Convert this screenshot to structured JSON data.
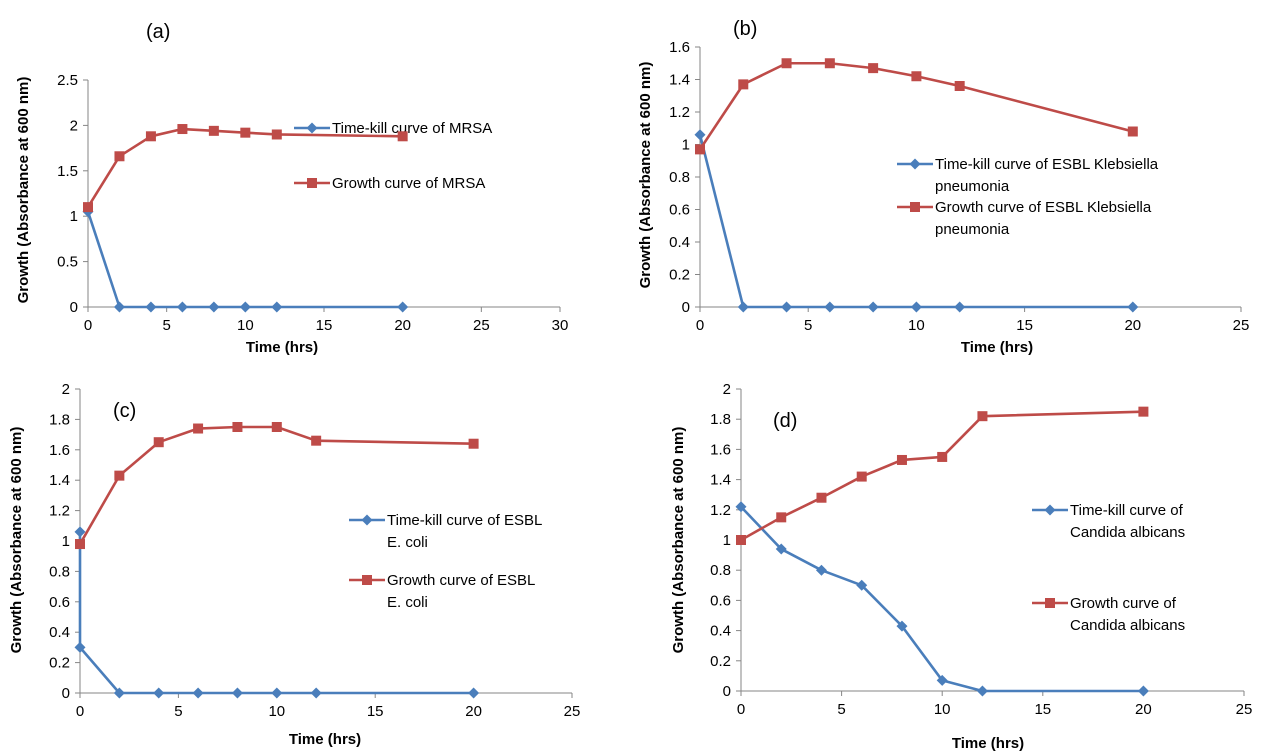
{
  "chart_data": [
    {
      "type": "line",
      "panel_label": "(a)",
      "xlabel": "Time (hrs)",
      "ylabel": "Growth (Absorbance at 600 nm)",
      "xlim": [
        0,
        30
      ],
      "ylim": [
        0,
        2.5
      ],
      "xticks": [
        "0",
        "5",
        "10",
        "15",
        "20",
        "25",
        "30"
      ],
      "yticks": [
        "0",
        "0.5",
        "1",
        "1.5",
        "2",
        "2.5"
      ],
      "legend_position": "right",
      "series": [
        {
          "name": "Time-kill curve of MRSA",
          "color": "#4a7ebb",
          "marker": "diamond",
          "x": [
            0,
            2,
            4,
            6,
            8,
            10,
            12,
            20
          ],
          "y": [
            1.05,
            0,
            0,
            0,
            0,
            0,
            0,
            0
          ]
        },
        {
          "name": "Growth curve of MRSA",
          "color": "#be4b48",
          "marker": "square",
          "x": [
            0,
            2,
            4,
            6,
            8,
            10,
            12,
            20
          ],
          "y": [
            1.1,
            1.66,
            1.88,
            1.96,
            1.94,
            1.92,
            1.9,
            1.88
          ]
        }
      ]
    },
    {
      "type": "line",
      "panel_label": "(b)",
      "xlabel": "Time (hrs)",
      "ylabel": "Growth (Absorbance at 600 nm)",
      "xlim": [
        0,
        25
      ],
      "ylim": [
        0,
        1.6
      ],
      "xticks": [
        "0",
        "5",
        "10",
        "15",
        "20",
        "25"
      ],
      "yticks": [
        "0",
        "0.2",
        "0.4",
        "0.6",
        "0.8",
        "1",
        "1.2",
        "1.4",
        "1.6"
      ],
      "legend_position": "right",
      "series": [
        {
          "name": "Time-kill curve of ESBL Klebsiella pneumonia",
          "color": "#4a7ebb",
          "marker": "diamond",
          "x": [
            0,
            2,
            4,
            6,
            8,
            10,
            12,
            20
          ],
          "y": [
            1.06,
            0,
            0,
            0,
            0,
            0,
            0,
            0
          ]
        },
        {
          "name": "Growth curve of ESBL Klebsiella pneumonia",
          "color": "#be4b48",
          "marker": "square",
          "x": [
            0,
            2,
            4,
            6,
            8,
            10,
            12,
            20
          ],
          "y": [
            0.97,
            1.37,
            1.5,
            1.5,
            1.47,
            1.42,
            1.36,
            1.08
          ]
        }
      ]
    },
    {
      "type": "line",
      "panel_label": "(c)",
      "xlabel": "Time (hrs)",
      "ylabel": "Growth (Absorbance at 600 nm)",
      "xlim": [
        0,
        25
      ],
      "ylim": [
        0,
        2
      ],
      "xticks": [
        "0",
        "5",
        "10",
        "15",
        "20",
        "25"
      ],
      "yticks": [
        "0",
        "0.2",
        "0.4",
        "0.6",
        "0.8",
        "1",
        "1.2",
        "1.4",
        "1.6",
        "1.8",
        "2"
      ],
      "legend_position": "right",
      "series": [
        {
          "name": "Time-kill curve of ESBL E. coli",
          "color": "#4a7ebb",
          "marker": "diamond",
          "x": [
            0,
            0,
            2,
            4,
            6,
            8,
            10,
            12,
            20
          ],
          "y": [
            1.06,
            0.3,
            0,
            0,
            0,
            0,
            0,
            0,
            0
          ]
        },
        {
          "name": "Growth curve of ESBL E. coli",
          "color": "#be4b48",
          "marker": "square",
          "x": [
            0,
            2,
            4,
            6,
            8,
            10,
            12,
            20
          ],
          "y": [
            0.98,
            1.43,
            1.65,
            1.74,
            1.75,
            1.75,
            1.66,
            1.64
          ]
        }
      ]
    },
    {
      "type": "line",
      "panel_label": "(d)",
      "xlabel": "Time (hrs)",
      "ylabel": "Growth (Absorbance at 600 nm)",
      "xlim": [
        0,
        25
      ],
      "ylim": [
        0,
        2
      ],
      "xticks": [
        "0",
        "5",
        "10",
        "15",
        "20",
        "25"
      ],
      "yticks": [
        "0",
        "0.2",
        "0.4",
        "0.6",
        "0.8",
        "1",
        "1.2",
        "1.4",
        "1.6",
        "1.8",
        "2"
      ],
      "legend_position": "right",
      "series": [
        {
          "name": "Time-kill curve of Candida albicans",
          "color": "#4a7ebb",
          "marker": "diamond",
          "x": [
            0,
            2,
            4,
            6,
            8,
            10,
            12,
            20
          ],
          "y": [
            1.22,
            0.94,
            0.8,
            0.7,
            0.43,
            0.07,
            0,
            0
          ]
        },
        {
          "name": "Growth curve of Candida albicans",
          "color": "#be4b48",
          "marker": "square",
          "x": [
            0,
            2,
            4,
            6,
            8,
            10,
            12,
            20
          ],
          "y": [
            1.0,
            1.15,
            1.28,
            1.42,
            1.53,
            1.55,
            1.82,
            1.85
          ]
        }
      ]
    }
  ]
}
